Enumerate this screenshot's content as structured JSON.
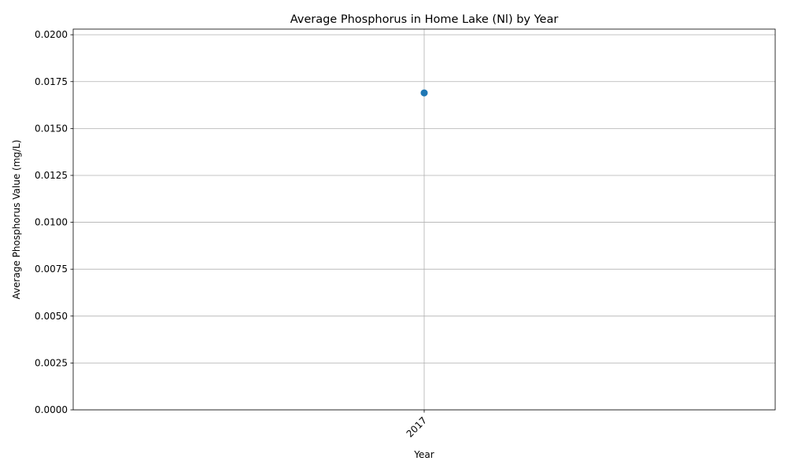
{
  "chart_data": {
    "type": "line",
    "title": "Average Phosphorus in Home Lake (Nl) by Year",
    "xlabel": "Year",
    "ylabel": "Average Phosphorus Value (mg/L)",
    "categories": [
      "2017"
    ],
    "series": [
      {
        "values": [
          0.0169
        ],
        "color": "#1f77b4",
        "marker": "circle"
      }
    ],
    "ylim": [
      0,
      0.0203
    ],
    "yticks": [
      0.0,
      0.0025,
      0.005,
      0.0075,
      0.01,
      0.0125,
      0.015,
      0.0175,
      0.02
    ],
    "ytick_labels": [
      "0.0000",
      "0.0025",
      "0.0050",
      "0.0075",
      "0.0100",
      "0.0125",
      "0.0150",
      "0.0175",
      "0.0200"
    ],
    "xtick_labels": [
      "2017"
    ],
    "xtick_rotation_deg": 45,
    "grid": true,
    "grid_color": "#b0b0b0",
    "axis_color": "#000000"
  }
}
